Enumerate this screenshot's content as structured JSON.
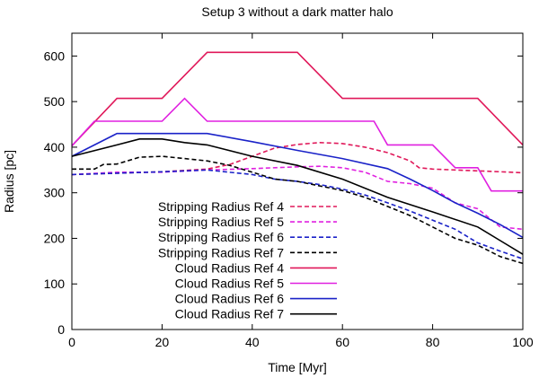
{
  "chart_data": {
    "type": "line",
    "title": "Setup 3 without a dark matter halo",
    "xlabel": "Time [Myr]",
    "ylabel": "Radius [pc]",
    "xlim": [
      0,
      100
    ],
    "ylim": [
      0,
      650
    ],
    "xticks": [
      "0",
      "20",
      "40",
      "60",
      "80",
      "100"
    ],
    "yticks": [
      "0",
      "100",
      "200",
      "300",
      "400",
      "500",
      "600"
    ],
    "grid": false,
    "legend_position": "bottom-left",
    "series": [
      {
        "name": "Stripping Radius Ref 4",
        "color": "#e0185a",
        "dash": "dashed",
        "x": [
          0,
          10,
          20,
          30,
          35,
          40,
          45,
          50,
          55,
          60,
          65,
          70,
          75,
          77,
          80,
          85,
          90,
          95,
          100
        ],
        "y": [
          340,
          343,
          346,
          352,
          362,
          380,
          398,
          406,
          410,
          408,
          400,
          388,
          370,
          355,
          352,
          350,
          348,
          346,
          344
        ]
      },
      {
        "name": "Stripping Radius Ref 5",
        "color": "#e020e0",
        "dash": "dashed",
        "x": [
          0,
          10,
          20,
          30,
          40,
          50,
          55,
          60,
          65,
          70,
          75,
          80,
          85,
          90,
          95,
          100
        ],
        "y": [
          340,
          345,
          345,
          350,
          353,
          357,
          358,
          355,
          345,
          325,
          320,
          310,
          278,
          265,
          225,
          220
        ]
      },
      {
        "name": "Stripping Radius Ref 6",
        "color": "#1a22c8",
        "dash": "dashed",
        "x": [
          0,
          10,
          20,
          30,
          40,
          45,
          50,
          55,
          60,
          65,
          70,
          75,
          80,
          85,
          90,
          95,
          100
        ],
        "y": [
          340,
          343,
          346,
          350,
          340,
          330,
          325,
          318,
          308,
          295,
          278,
          260,
          240,
          220,
          190,
          172,
          155
        ]
      },
      {
        "name": "Stripping Radius Ref 7",
        "color": "#000000",
        "dash": "dashed",
        "x": [
          0,
          5,
          7,
          10,
          15,
          20,
          25,
          30,
          35,
          40,
          45,
          50,
          55,
          60,
          65,
          70,
          75,
          80,
          85,
          90,
          95,
          100
        ],
        "y": [
          352,
          352,
          362,
          363,
          378,
          380,
          375,
          370,
          360,
          345,
          330,
          325,
          315,
          305,
          290,
          270,
          250,
          225,
          200,
          185,
          160,
          145
        ]
      },
      {
        "name": "Cloud Radius Ref 4",
        "color": "#e0185a",
        "dash": "solid",
        "x": [
          0,
          10,
          20,
          30,
          40,
          50,
          60,
          70,
          80,
          90,
          100
        ],
        "y": [
          403,
          507,
          507,
          608,
          608,
          608,
          507,
          507,
          507,
          507,
          405
        ]
      },
      {
        "name": "Cloud Radius Ref 5",
        "color": "#e020e0",
        "dash": "solid",
        "x": [
          0,
          5,
          20,
          25,
          30,
          40,
          67,
          70,
          80,
          85,
          90,
          93,
          100
        ],
        "y": [
          403,
          457,
          457,
          507,
          457,
          457,
          457,
          405,
          405,
          355,
          355,
          304,
          304
        ]
      },
      {
        "name": "Cloud Radius Ref 6",
        "color": "#1a22c8",
        "dash": "solid",
        "x": [
          0,
          10,
          20,
          30,
          40,
          50,
          60,
          70,
          75,
          80,
          85,
          90,
          95,
          100
        ],
        "y": [
          380,
          430,
          430,
          430,
          412,
          393,
          375,
          353,
          330,
          305,
          278,
          255,
          230,
          202
        ]
      },
      {
        "name": "Cloud Radius Ref 7",
        "color": "#000000",
        "dash": "solid",
        "x": [
          0,
          10,
          15,
          20,
          25,
          30,
          40,
          50,
          60,
          70,
          80,
          90,
          95,
          100
        ],
        "y": [
          380,
          405,
          418,
          418,
          410,
          405,
          380,
          360,
          330,
          290,
          258,
          225,
          195,
          165
        ]
      }
    ]
  }
}
